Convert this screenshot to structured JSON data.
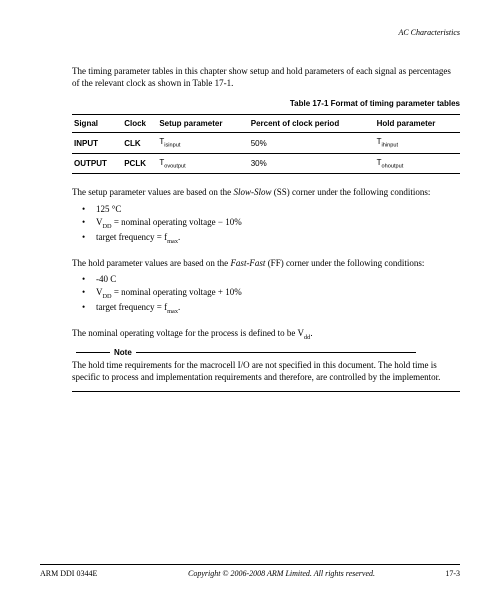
{
  "header": {
    "title": "AC Characteristics"
  },
  "intro": "The timing parameter tables in this chapter show setup and hold parameters of each signal as percentages of the relevant clock as shown in Table 17-1.",
  "table": {
    "caption": "Table 17-1 Format of timing parameter tables",
    "headers": [
      "Signal",
      "Clock",
      "Setup parameter",
      "Percent of clock period",
      "Hold parameter"
    ],
    "rows": [
      {
        "signal": "INPUT",
        "clock": "CLK",
        "setup": "Tisinput",
        "pct": "50%",
        "hold": "Tihinput"
      },
      {
        "signal": "OUTPUT",
        "clock": "PCLK",
        "setup": "Tovoutput",
        "pct": "30%",
        "hold": "Tohoutput"
      }
    ]
  },
  "setup_intro": "The setup parameter values are based on the ",
  "slow_slow": "Slow-Slow",
  "setup_suffix": " (SS) corner under the following conditions:",
  "setup_bullets": {
    "b1_pre": "125 ",
    "b1_unit": "°C",
    "b2_pre": "V",
    "b2_sub": "DD",
    "b2_mid": " = nominal operating voltage − 10%",
    "b3_pre": "target frequency = f",
    "b3_sub": "max",
    "b3_post": "."
  },
  "hold_intro": "The hold parameter values are based on the ",
  "fast_fast": "Fast-Fast",
  "hold_suffix": " (FF) corner under the following conditions:",
  "hold_bullets": {
    "b1": "-40 C",
    "b2_pre": "V",
    "b2_sub": "DD",
    "b2_mid": " = nominal operating voltage + 10%",
    "b3_pre": "target frequency = f",
    "b3_sub": "max",
    "b3_post": "."
  },
  "nominal_pre": "The nominal operating voltage for the process is defined to be V",
  "nominal_sub": "dd",
  "nominal_post": ".",
  "note": {
    "label": "Note",
    "body": "The hold time requirements for the macrocell I/O are not specified in this document. The hold time is specific to process and implementation requirements and therefore, are controlled by the implementor."
  },
  "footer": {
    "left": "ARM DDI 0344E",
    "center": "Copyright © 2006-2008 ARM Limited. All rights reserved.",
    "right": "17-3"
  }
}
